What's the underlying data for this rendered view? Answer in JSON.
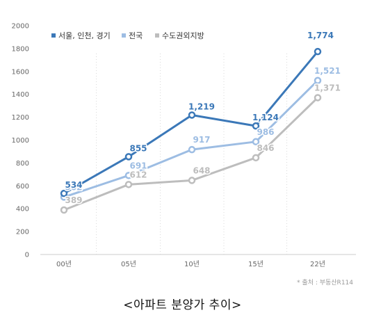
{
  "chart_data": {
    "type": "line",
    "categories": [
      "00년",
      "05년",
      "10년",
      "15년",
      "22년"
    ],
    "ylim": [
      0,
      2000
    ],
    "yticks": [
      0,
      200,
      400,
      600,
      800,
      1000,
      1200,
      1400,
      1600,
      1800,
      2000
    ],
    "legend_position": "top-left",
    "grid": "vertical dotted",
    "series": [
      {
        "name": "서울, 인천, 경기",
        "color": "#3b78b8",
        "values": [
          534,
          855,
          1219,
          1124,
          1774
        ],
        "labels": [
          "534",
          "855",
          "1,219",
          "1,124",
          "1,774"
        ]
      },
      {
        "name": "전국",
        "color": "#9dbde3",
        "values": [
          502,
          691,
          917,
          986,
          1521
        ],
        "labels": [
          "502",
          "691",
          "917",
          "986",
          "1,521"
        ]
      },
      {
        "name": "수도권외지방",
        "color": "#bdbdbd",
        "values": [
          389,
          612,
          648,
          846,
          1371
        ],
        "labels": [
          "389",
          "612",
          "648",
          "846",
          "1,371"
        ]
      }
    ],
    "source": "* 출처 : 부동산R114",
    "caption": "<아파트 분양가 추이>"
  }
}
